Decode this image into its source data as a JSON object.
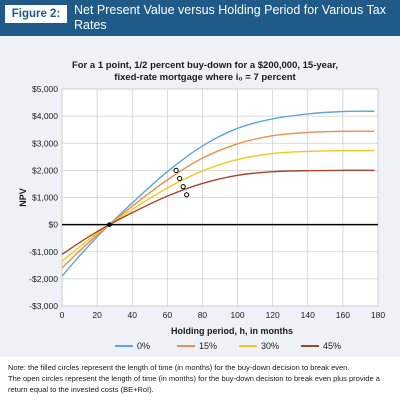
{
  "figure": {
    "label": "Figure 2:",
    "title": "Net Present Value versus Holding Period for Various Tax Rates"
  },
  "chart_data": {
    "type": "line",
    "subtitle_lines": [
      "For a 1 point, 1/2 percent buy-down for a $200,000, 15-year,",
      "fixed-rate mortgage where i₀ = 7 percent"
    ],
    "xlabel": "Holding period, h, in months",
    "ylabel": "NPV",
    "xlim": [
      0,
      180
    ],
    "ylim": [
      -3000,
      5000
    ],
    "x_ticks": [
      0,
      20,
      40,
      60,
      80,
      100,
      120,
      140,
      160,
      180
    ],
    "y_ticks": [
      -3000,
      -2000,
      -1000,
      0,
      1000,
      2000,
      3000,
      4000,
      5000
    ],
    "y_tick_labels": [
      "-$3,000",
      "-$2,000",
      "-$1,000",
      "$0",
      "$1,000",
      "$2,000",
      "$3,000",
      "$4,000",
      "$5,000"
    ],
    "grid": true,
    "legend_position": "bottom",
    "series": [
      {
        "name": "0%",
        "color": "#5aa7dc",
        "x": [
          0,
          10,
          20,
          27,
          40,
          60,
          80,
          100,
          120,
          140,
          160,
          178
        ],
        "y": [
          -1900,
          -1150,
          -450,
          0,
          800,
          1950,
          2900,
          3550,
          3900,
          4080,
          4170,
          4180
        ]
      },
      {
        "name": "15%",
        "color": "#ef8e4a",
        "x": [
          0,
          10,
          20,
          27,
          40,
          60,
          80,
          100,
          120,
          140,
          160,
          178
        ],
        "y": [
          -1600,
          -970,
          -380,
          0,
          680,
          1650,
          2450,
          2980,
          3280,
          3400,
          3440,
          3440
        ]
      },
      {
        "name": "30%",
        "color": "#f2c81e",
        "x": [
          0,
          10,
          20,
          27,
          40,
          60,
          80,
          100,
          120,
          140,
          160,
          178
        ],
        "y": [
          -1350,
          -820,
          -320,
          0,
          560,
          1350,
          1980,
          2400,
          2620,
          2700,
          2730,
          2730
        ]
      },
      {
        "name": "45%",
        "color": "#a8442e",
        "x": [
          0,
          10,
          20,
          27,
          40,
          60,
          80,
          100,
          120,
          140,
          160,
          178
        ],
        "y": [
          -1100,
          -660,
          -260,
          0,
          440,
          1050,
          1520,
          1820,
          1950,
          1990,
          2000,
          2000
        ]
      }
    ],
    "break_even_points": [
      {
        "series": "0%",
        "x": 27,
        "y": 0
      },
      {
        "series": "15%",
        "x": 27,
        "y": 0
      },
      {
        "series": "30%",
        "x": 27,
        "y": 0
      },
      {
        "series": "45%",
        "x": 27,
        "y": 0
      }
    ],
    "be_roi_points": [
      {
        "series": "0%",
        "x": 65,
        "y": 2000
      },
      {
        "series": "15%",
        "x": 67,
        "y": 1700
      },
      {
        "series": "30%",
        "x": 69,
        "y": 1400
      },
      {
        "series": "45%",
        "x": 71,
        "y": 1100
      }
    ]
  },
  "note": {
    "line1": "Note: the filled circles represent the length of time (in months) for the buy-down decision to break even.",
    "line2": "The open circles represent the length of time (in months) for the buy-down decision to break even plus provide a return equal to the invested costs (BE+RoI)."
  }
}
